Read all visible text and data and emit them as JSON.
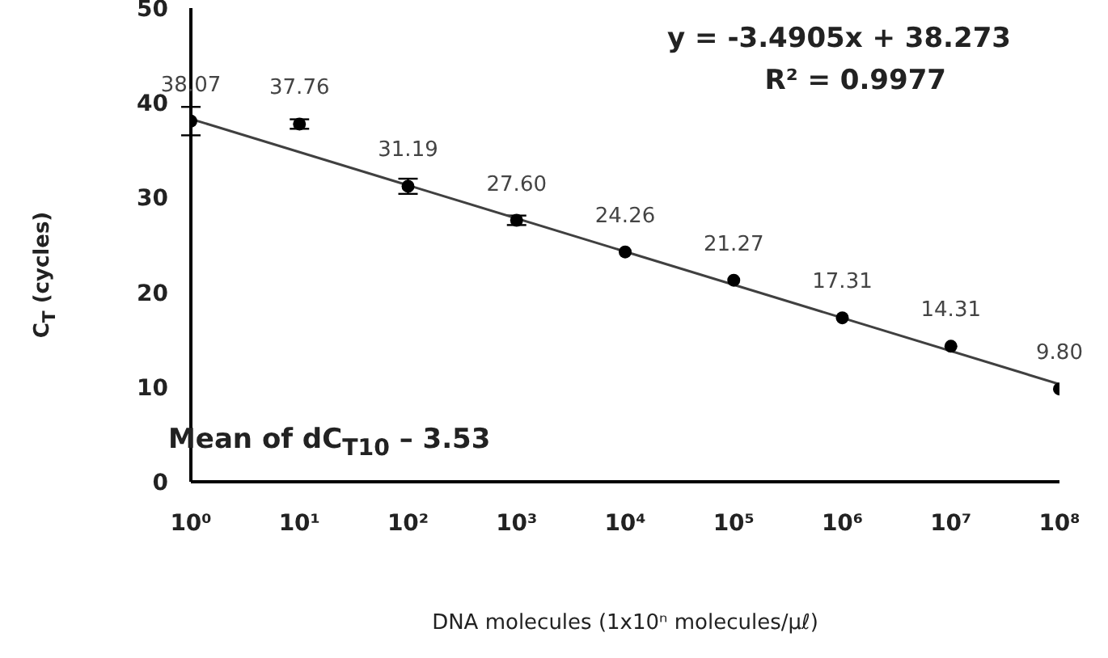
{
  "chart_data": {
    "type": "scatter",
    "xlabel": "DNA molecules (1x10ⁿ molecules/µℓ)",
    "ylabel": "C$_{T}$ (cycles)",
    "x": [
      1,
      10,
      100,
      1000,
      10000,
      100000,
      1000000,
      10000000,
      100000000
    ],
    "log": "x",
    "xlim": [
      1,
      100000000
    ],
    "xticks": [
      {
        "value": 1,
        "label": "10⁰"
      },
      {
        "value": 10,
        "label": "10¹"
      },
      {
        "value": 100,
        "label": "10²"
      },
      {
        "value": 1000,
        "label": "10³"
      },
      {
        "value": 10000,
        "label": "10⁴"
      },
      {
        "value": 100000,
        "label": "10⁵"
      },
      {
        "value": 1000000,
        "label": "10⁶"
      },
      {
        "value": 10000000,
        "label": "10⁷"
      },
      {
        "value": 100000000,
        "label": "10⁸"
      }
    ],
    "ylim": [
      0,
      50
    ],
    "yticks": [
      0,
      10,
      20,
      30,
      40,
      50
    ],
    "marker": "circle",
    "series": [
      {
        "color": "#000000",
        "values": [
          38.07,
          37.76,
          31.19,
          27.6,
          24.26,
          21.27,
          17.31,
          14.31,
          9.8
        ],
        "errors": [
          1.5,
          0.5,
          0.8,
          0.5,
          null,
          null,
          null,
          null,
          null
        ],
        "value_labels": [
          "38.07",
          "37.76",
          "31.19",
          "27.60",
          "24.26",
          "21.27",
          "17.31",
          "14.31",
          "9.80"
        ]
      },
      {
        "type": "line",
        "color": "#404040",
        "x": [
          1,
          100000000
        ],
        "values": [
          38.3,
          10.3
        ],
        "marker": "none"
      }
    ],
    "annotations": [
      "y = -3.4905x + 38.273",
      "R² = 0.9977",
      "Mean of dC$_{T10}$ – 3.53"
    ]
  }
}
